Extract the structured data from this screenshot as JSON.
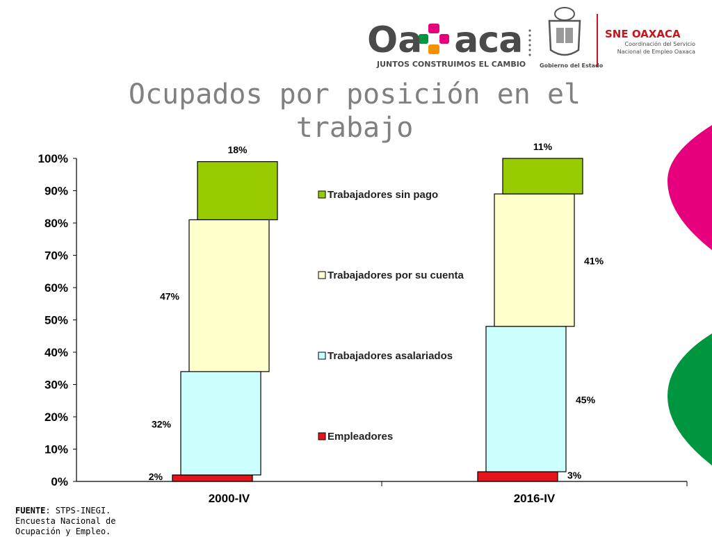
{
  "header": {
    "logo_text": "Oaxaca",
    "slogan": "JUNTOS CONSTRUIMOS EL CAMBIO",
    "gov_label": "Gobierno del Estado",
    "sne_title": "SNE OAXACA",
    "sne_sub_1": "Coordinación del Servicio",
    "sne_sub_2": "Nacional de Empleo Oaxaca",
    "colors": {
      "pink": "#e6007e",
      "orange": "#f39200",
      "green": "#009640",
      "gray": "#4a4a4a",
      "red": "#c4161c"
    }
  },
  "slide": {
    "title": "Ocupados por posición en el trabajo"
  },
  "source": {
    "label": "FUENTE",
    "text": ": STPS-INEGI. Encuesta Nacional de Ocupación y Empleo."
  },
  "chart_data": {
    "type": "bar",
    "stacked": true,
    "categories": [
      "2000-IV",
      "2016-IV"
    ],
    "ylim": [
      0,
      100
    ],
    "yticks": [
      "0%",
      "10%",
      "20%",
      "30%",
      "40%",
      "50%",
      "60%",
      "70%",
      "80%",
      "90%",
      "100%"
    ],
    "legend_placement": "center",
    "series": [
      {
        "name": "Empleadores",
        "values": [
          2,
          3
        ],
        "labels": [
          "2%",
          "3%"
        ],
        "color": "#e8141c"
      },
      {
        "name": "Trabajadores asalariados",
        "values": [
          32,
          45
        ],
        "labels": [
          "32%",
          "45%"
        ],
        "color": "#ccffff"
      },
      {
        "name": "Trabajadores por su cuenta",
        "values": [
          47,
          41
        ],
        "labels": [
          "47%",
          "41%"
        ],
        "color": "#ffffcc"
      },
      {
        "name": "Trabajadores sin pago",
        "values": [
          18,
          11
        ],
        "labels": [
          "18%",
          "11%"
        ],
        "color": "#99cc00"
      }
    ]
  }
}
